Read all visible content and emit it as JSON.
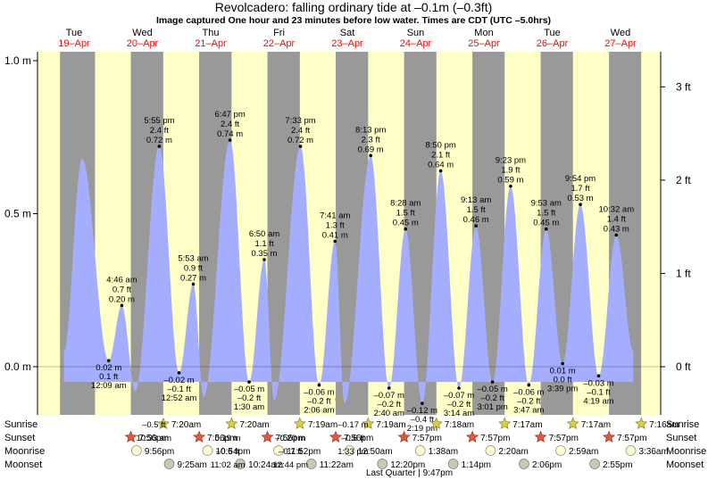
{
  "title": "Revolcadero: falling  ordinary tide at –0.1m (–0.3ft)",
  "subtitle": "Image captured One hour and 23 minutes before low water. Times are CDT (UTC –5.0hrs)",
  "colors": {
    "day": "#ffffc8",
    "night": "#999999",
    "tide": "#a5adff",
    "date_red": "#ff0000",
    "text": "#000000"
  },
  "days": [
    {
      "dow": "Tue",
      "date": "19–Apr"
    },
    {
      "dow": "Wed",
      "date": "20–Apr"
    },
    {
      "dow": "Thu",
      "date": "21–Apr"
    },
    {
      "dow": "Fri",
      "date": "22–Apr"
    },
    {
      "dow": "Sat",
      "date": "23–Apr"
    },
    {
      "dow": "Sun",
      "date": "24–Apr"
    },
    {
      "dow": "Mon",
      "date": "25–Apr"
    },
    {
      "dow": "Tue",
      "date": "26–Apr"
    },
    {
      "dow": "Wed",
      "date": "27–Apr"
    }
  ],
  "chart_data": {
    "type": "area",
    "title": "Revolcadero: falling  ordinary tide at –0.1m (–0.3ft)",
    "x_unit": "hours since Tue 19–Apr 00:00 CDT",
    "ylim_m": [
      -0.15,
      1.03
    ],
    "ylim_ft": [
      -0.5,
      3.4
    ],
    "left_ticks": [
      "1.0 m",
      "0.5 m",
      "0.0 m"
    ],
    "right_ticks": [
      "3 ft",
      "2 ft",
      "1 ft",
      "0 ft"
    ],
    "nights": [
      {
        "from": -4.95,
        "to": 7.35
      },
      {
        "from": 19.94,
        "to": 31.33
      },
      {
        "from": 43.94,
        "to": 55.33
      },
      {
        "from": 67.93,
        "to": 79.32
      },
      {
        "from": 91.93,
        "to": 103.32
      },
      {
        "from": 115.95,
        "to": 127.3
      },
      {
        "from": 139.95,
        "to": 151.28
      },
      {
        "from": 163.95,
        "to": 175.28
      },
      {
        "from": 187.95,
        "to": 199.27
      }
    ],
    "extremes": [
      {
        "h": -3.6,
        "m": 0.05,
        "type": "low",
        "time": "",
        "ft": "",
        "m_label": ""
      },
      {
        "h": 2.8,
        "m": 0.68,
        "type": "high",
        "time": "",
        "ft": "",
        "m_label": ""
      },
      {
        "h": 12.15,
        "m": 0.02,
        "type": "low",
        "time": "12:09 am",
        "ft": "0.1 ft",
        "m_label": "0.02 m"
      },
      {
        "h": 16.77,
        "m": 0.2,
        "type": "high",
        "time": "4:46 am",
        "ft": "0.7 ft",
        "m_label": "0.20 m"
      },
      {
        "h": 21.5,
        "m": -0.08,
        "type": "low",
        "time": "",
        "ft": "",
        "m_label": ""
      },
      {
        "h": 29.92,
        "m": 0.72,
        "type": "high",
        "time": "5:55 pm",
        "ft": "2.4 ft",
        "m_label": "0.72 m"
      },
      {
        "h": 36.87,
        "m": -0.02,
        "type": "low",
        "time": "12:52 am",
        "ft": "–0.1 ft",
        "m_label": "–0.02 m"
      },
      {
        "h": 41.88,
        "m": 0.27,
        "type": "high",
        "time": "5:53 am",
        "ft": "0.9 ft",
        "m_label": "0.27 m"
      },
      {
        "h": 45.5,
        "m": -0.1,
        "type": "low",
        "time": "",
        "ft": "",
        "m_label": ""
      },
      {
        "h": 54.78,
        "m": 0.74,
        "type": "high",
        "time": "6:47 pm",
        "ft": "2.4 ft",
        "m_label": "0.74 m"
      },
      {
        "h": 61.5,
        "m": -0.05,
        "type": "low",
        "time": "1:30 am",
        "ft": "–0.2 ft",
        "m_label": "–0.05 m"
      },
      {
        "h": 66.83,
        "m": 0.35,
        "type": "high",
        "time": "6:50 am",
        "ft": "1.1 ft",
        "m_label": "0.35 m"
      },
      {
        "h": 70.3,
        "m": -0.11,
        "type": "low",
        "time": "",
        "ft": "",
        "m_label": ""
      },
      {
        "h": 79.55,
        "m": 0.72,
        "type": "high",
        "time": "7:33 pm",
        "ft": "2.4 ft",
        "m_label": "0.72 m"
      },
      {
        "h": 86.1,
        "m": -0.06,
        "type": "low",
        "time": "2:06 am",
        "ft": "–0.2 ft",
        "m_label": "–0.06 m"
      },
      {
        "h": 91.68,
        "m": 0.41,
        "type": "high",
        "time": "7:41 am",
        "ft": "1.3 ft",
        "m_label": "0.41 m"
      },
      {
        "h": 95.0,
        "m": -0.12,
        "type": "low",
        "time": "",
        "ft": "",
        "m_label": ""
      },
      {
        "h": 104.22,
        "m": 0.69,
        "type": "high",
        "time": "8:13 pm",
        "ft": "2.3 ft",
        "m_label": "0.69 m"
      },
      {
        "h": 110.67,
        "m": -0.07,
        "type": "low",
        "time": "2:40 am",
        "ft": "–0.2 ft",
        "m_label": "–0.07 m"
      },
      {
        "h": 116.47,
        "m": 0.45,
        "type": "high",
        "time": "8:28 am",
        "ft": "1.5 ft",
        "m_label": "0.45 m"
      },
      {
        "h": 122.32,
        "m": -0.12,
        "type": "low",
        "time": "2:19 pm",
        "ft": "–0.4 ft",
        "m_label": "–0.12 m"
      },
      {
        "h": 128.83,
        "m": 0.64,
        "type": "high",
        "time": "8:50 pm",
        "ft": "2.1 ft",
        "m_label": "0.64 m"
      },
      {
        "h": 135.23,
        "m": -0.07,
        "type": "low",
        "time": "3:14 am",
        "ft": "–0.2 ft",
        "m_label": "–0.07 m"
      },
      {
        "h": 141.22,
        "m": 0.46,
        "type": "high",
        "time": "9:13 am",
        "ft": "1.5 ft",
        "m_label": "0.46 m"
      },
      {
        "h": 147.02,
        "m": -0.05,
        "type": "low",
        "time": "3:01 pm",
        "ft": "–0.2 ft",
        "m_label": "–0.05 m"
      },
      {
        "h": 153.38,
        "m": 0.59,
        "type": "high",
        "time": "9:23 pm",
        "ft": "1.9 ft",
        "m_label": "0.59 m"
      },
      {
        "h": 159.78,
        "m": -0.06,
        "type": "low",
        "time": "3:47 am",
        "ft": "–0.2 ft",
        "m_label": "–0.06 m"
      },
      {
        "h": 165.88,
        "m": 0.45,
        "type": "high",
        "time": "9:53 am",
        "ft": "1.5 ft",
        "m_label": "0.45 m"
      },
      {
        "h": 171.65,
        "m": 0.01,
        "type": "low",
        "time": "3:39 pm",
        "ft": "0.0 ft",
        "m_label": "0.01 m"
      },
      {
        "h": 177.9,
        "m": 0.53,
        "type": "high",
        "time": "9:54 pm",
        "ft": "1.7 ft",
        "m_label": "0.53 m"
      },
      {
        "h": 184.32,
        "m": -0.03,
        "type": "low",
        "time": "4:19 am",
        "ft": "–0.1 ft",
        "m_label": "–0.03 m"
      },
      {
        "h": 190.53,
        "m": 0.43,
        "type": "high",
        "time": "10:32 am",
        "ft": "1.4 ft",
        "m_label": "0.43 m"
      },
      {
        "h": 196.5,
        "m": 0.05,
        "type": "low",
        "time": "",
        "ft": "",
        "m_label": ""
      }
    ],
    "now_h": 93.0,
    "now_marker": "▽"
  },
  "rows": {
    "labels_left": [
      "Sunrise",
      "Sunset",
      "Moonrise",
      "Moonset"
    ],
    "labels_right": [
      "Sunrise",
      "Sunset",
      "Moonrise",
      "Moonset"
    ],
    "sunrise": [
      {
        "h": 31.33,
        "t": "7:20am"
      },
      {
        "h": 55.33,
        "t": "7:20am"
      },
      {
        "h": 79.32,
        "t": "7:19am"
      },
      {
        "h": 103.32,
        "t": "7:19am"
      },
      {
        "h": 127.3,
        "t": "7:18am"
      },
      {
        "h": 151.28,
        "t": "7:17am"
      },
      {
        "h": 175.28,
        "t": "7:17am"
      },
      {
        "h": 199.27,
        "t": "7:16am"
      }
    ],
    "sunset": [
      {
        "h": 19.94,
        "t": "7:56pm"
      },
      {
        "h": 43.94,
        "t": "7:56pm"
      },
      {
        "h": 67.93,
        "t": "7:56pm"
      },
      {
        "h": 91.93,
        "t": "7:56pm"
      },
      {
        "h": 115.95,
        "t": "7:57pm"
      },
      {
        "h": 139.95,
        "t": "7:57pm"
      },
      {
        "h": 163.95,
        "t": "7:57pm"
      },
      {
        "h": 187.95,
        "t": "7:57pm"
      }
    ],
    "moonrise": [
      {
        "h": 21.93,
        "t": "9:56pm"
      },
      {
        "h": 46.9,
        "t": "10:54pm"
      },
      {
        "h": 71.87,
        "t": "11:52pm"
      },
      {
        "h": 96.83,
        "t": "12:50am"
      },
      {
        "h": 121.63,
        "t": "1:38am"
      },
      {
        "h": 146.33,
        "t": "2:20am"
      },
      {
        "h": 170.98,
        "t": "2:59am"
      },
      {
        "h": 195.6,
        "t": "3:36am"
      }
    ],
    "moonset": [
      {
        "h": 33.42,
        "t": "9:25am"
      },
      {
        "h": 58.4,
        "t": "10:24am"
      },
      {
        "h": 83.37,
        "t": "11:22am"
      },
      {
        "h": 108.33,
        "t": "12:20pm"
      },
      {
        "h": 133.23,
        "t": "1:14pm"
      },
      {
        "h": 158.1,
        "t": "2:06pm"
      },
      {
        "h": 182.92,
        "t": "2:55pm"
      }
    ],
    "overlap_text": [
      {
        "h": 28.0,
        "row": 0,
        "t": "–0.5 ft"
      },
      {
        "h": 28.0,
        "row": 1,
        "t": "10:33 am"
      },
      {
        "h": 54.0,
        "row": 1,
        "t": "0.19 m"
      },
      {
        "h": 54.0,
        "row": 2,
        "t": "–0.6 ft"
      },
      {
        "h": 54.0,
        "row": 3,
        "t": "11:02 am"
      },
      {
        "h": 76.0,
        "row": 1,
        "t": "–0.20 m"
      },
      {
        "h": 76.0,
        "row": 2,
        "t": "–0.7 ft"
      },
      {
        "h": 76.0,
        "row": 3,
        "t": "12:44 pm"
      },
      {
        "h": 98.0,
        "row": 0,
        "t": "–0.17 m"
      },
      {
        "h": 98.0,
        "row": 1,
        "t": "–0.6 ft"
      },
      {
        "h": 98.0,
        "row": 2,
        "t": "1:33 pm"
      }
    ],
    "moon_phase": "Last Quarter | 9:47pm",
    "moon_phase_h": 117.8
  }
}
